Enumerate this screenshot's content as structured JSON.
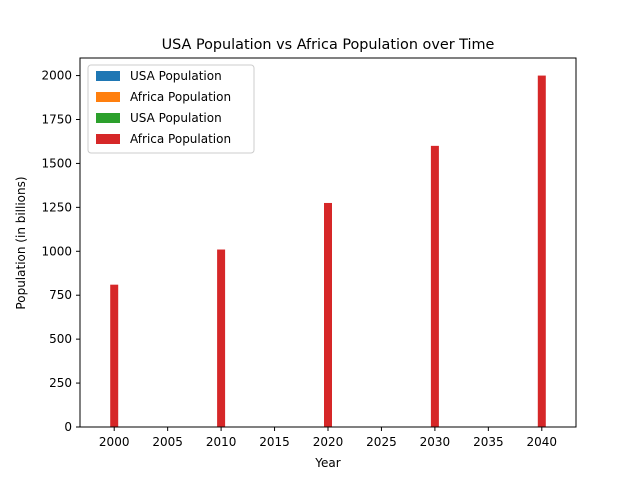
{
  "chart_data": {
    "type": "bar",
    "title": "USA Population vs Africa Population over Time",
    "xlabel": "Year",
    "ylabel": "Population (in billions)",
    "x": [
      2000,
      2010,
      2020,
      2030,
      2040
    ],
    "xlim": [
      1996.8,
      2043.2
    ],
    "ylim": [
      0,
      2100
    ],
    "xticks": [
      2000,
      2005,
      2010,
      2015,
      2020,
      2025,
      2030,
      2035,
      2040
    ],
    "yticks": [
      0,
      250,
      500,
      750,
      1000,
      1250,
      1500,
      1750,
      2000
    ],
    "grid": false,
    "legend_position": "top-left",
    "series": [
      {
        "name": "USA Population",
        "color": "#1f77b4",
        "values": [
          0.28,
          0.31,
          0.33,
          0.35,
          0.37
        ]
      },
      {
        "name": "Africa Population",
        "color": "#ff7f0e",
        "values": [
          0.81,
          1.01,
          1.28,
          1.6,
          2.0
        ]
      },
      {
        "name": "USA Population",
        "color": "#2ca02c",
        "values": [
          0.28,
          0.31,
          0.33,
          0.35,
          0.37
        ]
      },
      {
        "name": "Africa Population",
        "color": "#d62728",
        "values": [
          810,
          1010,
          1275,
          1600,
          2000
        ]
      }
    ]
  }
}
